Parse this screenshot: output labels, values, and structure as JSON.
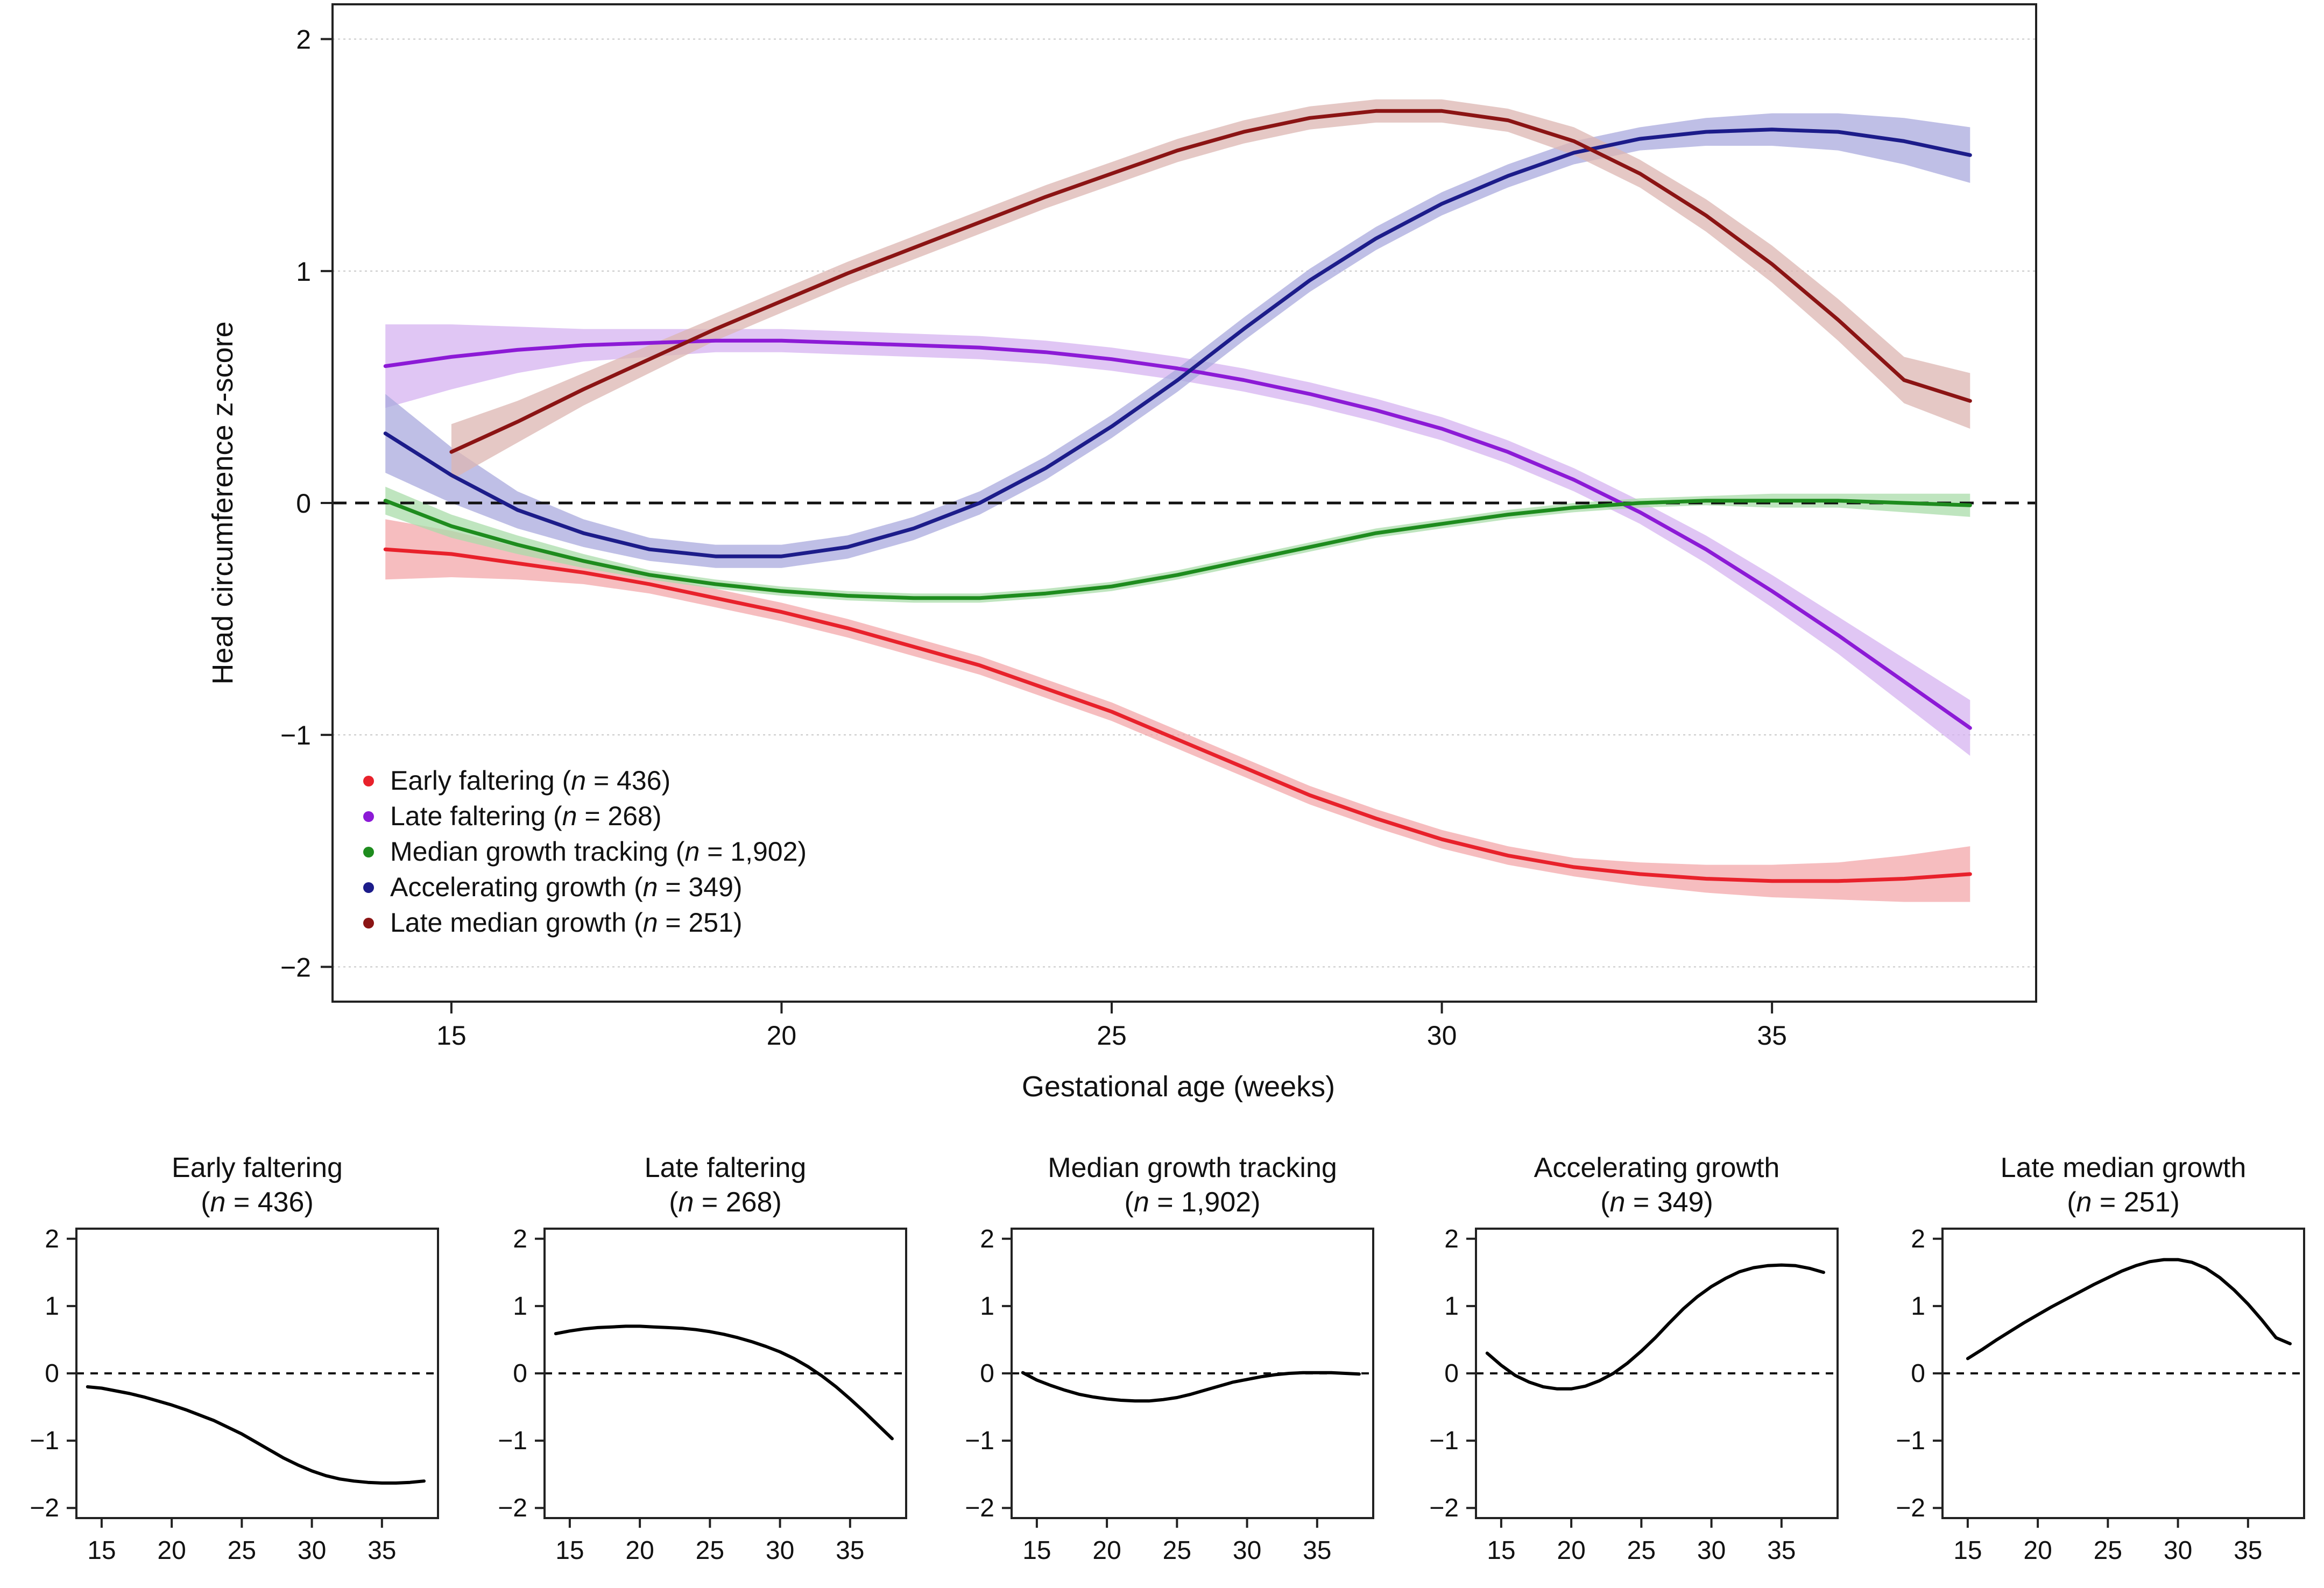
{
  "chart_data": {
    "type": "line",
    "title": "",
    "xlabel": "Gestational age (weeks)",
    "ylabel": "Head circumference z-score",
    "xlim": [
      13.2,
      39.0
    ],
    "ylim": [
      -2.15,
      2.15
    ],
    "xticks": [
      15,
      20,
      25,
      30,
      35
    ],
    "yticks": [
      2,
      1,
      0,
      -1,
      -2
    ],
    "reference_line": 0,
    "grid": "horizontal",
    "legend_position": "bottom-left",
    "series": [
      {
        "name": "Early faltering",
        "legend_label": "Early faltering (",
        "legend_n": "n",
        "legend_value": " = 436)",
        "color": "#e8212b",
        "band_color": "#f3a7aa",
        "x": [
          14,
          15,
          16,
          17,
          18,
          19,
          20,
          21,
          22,
          23,
          24,
          25,
          26,
          27,
          28,
          29,
          30,
          31,
          32,
          33,
          34,
          35,
          36,
          37,
          38
        ],
        "y": [
          -0.2,
          -0.22,
          -0.26,
          -0.3,
          -0.35,
          -0.41,
          -0.47,
          -0.54,
          -0.62,
          -0.7,
          -0.8,
          -0.9,
          -1.02,
          -1.14,
          -1.26,
          -1.36,
          -1.45,
          -1.52,
          -1.57,
          -1.6,
          -1.62,
          -1.63,
          -1.63,
          -1.62,
          -1.6
        ],
        "ci": [
          0.13,
          0.1,
          0.07,
          0.05,
          0.04,
          0.04,
          0.04,
          0.04,
          0.04,
          0.04,
          0.04,
          0.04,
          0.04,
          0.04,
          0.04,
          0.04,
          0.04,
          0.04,
          0.04,
          0.05,
          0.06,
          0.07,
          0.08,
          0.1,
          0.12
        ]
      },
      {
        "name": "Late faltering",
        "legend_label": "Late faltering (",
        "legend_n": "n",
        "legend_value": " = 268)",
        "color": "#8c1ad6",
        "band_color": "#d6b3f0",
        "x": [
          14,
          15,
          16,
          17,
          18,
          19,
          20,
          21,
          22,
          23,
          24,
          25,
          26,
          27,
          28,
          29,
          30,
          31,
          32,
          33,
          34,
          35,
          36,
          37,
          38
        ],
        "y": [
          0.59,
          0.63,
          0.66,
          0.68,
          0.69,
          0.7,
          0.7,
          0.69,
          0.68,
          0.67,
          0.65,
          0.62,
          0.58,
          0.53,
          0.47,
          0.4,
          0.32,
          0.22,
          0.1,
          -0.04,
          -0.2,
          -0.38,
          -0.57,
          -0.77,
          -0.97
        ],
        "ci": [
          0.18,
          0.14,
          0.1,
          0.07,
          0.06,
          0.05,
          0.05,
          0.05,
          0.05,
          0.05,
          0.05,
          0.05,
          0.05,
          0.05,
          0.05,
          0.05,
          0.05,
          0.05,
          0.05,
          0.05,
          0.06,
          0.07,
          0.08,
          0.1,
          0.12
        ]
      },
      {
        "name": "Median growth tracking",
        "legend_label": "Median growth tracking (",
        "legend_n": "n",
        "legend_value": " = 1,902)",
        "color": "#1e8c1e",
        "band_color": "#a9dca9",
        "x": [
          14,
          15,
          16,
          17,
          18,
          19,
          20,
          21,
          22,
          23,
          24,
          25,
          26,
          27,
          28,
          29,
          30,
          31,
          32,
          33,
          34,
          35,
          36,
          37,
          38
        ],
        "y": [
          0.01,
          -0.1,
          -0.18,
          -0.25,
          -0.31,
          -0.35,
          -0.38,
          -0.4,
          -0.41,
          -0.41,
          -0.39,
          -0.36,
          -0.31,
          -0.25,
          -0.19,
          -0.13,
          -0.09,
          -0.05,
          -0.02,
          0,
          0.01,
          0.01,
          0.01,
          0,
          -0.01
        ],
        "ci": [
          0.06,
          0.05,
          0.04,
          0.03,
          0.02,
          0.02,
          0.02,
          0.02,
          0.02,
          0.02,
          0.02,
          0.02,
          0.02,
          0.02,
          0.02,
          0.02,
          0.02,
          0.02,
          0.02,
          0.02,
          0.02,
          0.03,
          0.03,
          0.04,
          0.05
        ]
      },
      {
        "name": "Accelerating growth",
        "legend_label": "Accelerating growth (",
        "legend_n": "n",
        "legend_value": " = 349)",
        "color": "#1c1c8a",
        "band_color": "#a9a9de",
        "x": [
          14,
          15,
          16,
          17,
          18,
          19,
          20,
          21,
          22,
          23,
          24,
          25,
          26,
          27,
          28,
          29,
          30,
          31,
          32,
          33,
          34,
          35,
          36,
          37,
          38
        ],
        "y": [
          0.3,
          0.12,
          -0.03,
          -0.13,
          -0.2,
          -0.23,
          -0.23,
          -0.19,
          -0.11,
          0,
          0.15,
          0.33,
          0.53,
          0.75,
          0.96,
          1.14,
          1.29,
          1.41,
          1.51,
          1.57,
          1.6,
          1.61,
          1.6,
          1.56,
          1.5
        ],
        "ci": [
          0.17,
          0.12,
          0.08,
          0.06,
          0.05,
          0.05,
          0.05,
          0.05,
          0.05,
          0.05,
          0.05,
          0.05,
          0.05,
          0.05,
          0.05,
          0.05,
          0.05,
          0.05,
          0.05,
          0.05,
          0.06,
          0.07,
          0.08,
          0.1,
          0.12
        ]
      },
      {
        "name": "Late median growth",
        "legend_label": "Late median growth (",
        "legend_n": "n",
        "legend_value": " = 251)",
        "color": "#8b1414",
        "band_color": "#dcb6b2",
        "x": [
          15,
          16,
          17,
          18,
          19,
          20,
          21,
          22,
          23,
          24,
          25,
          26,
          27,
          28,
          29,
          30,
          31,
          32,
          33,
          34,
          35,
          36,
          37,
          38
        ],
        "y": [
          0.22,
          0.35,
          0.49,
          0.62,
          0.75,
          0.87,
          0.99,
          1.1,
          1.21,
          1.32,
          1.42,
          1.52,
          1.6,
          1.66,
          1.69,
          1.69,
          1.65,
          1.56,
          1.42,
          1.24,
          1.03,
          0.79,
          0.53,
          0.44
        ],
        "ci": [
          0.12,
          0.09,
          0.07,
          0.06,
          0.05,
          0.05,
          0.05,
          0.05,
          0.05,
          0.05,
          0.05,
          0.05,
          0.05,
          0.05,
          0.05,
          0.05,
          0.05,
          0.06,
          0.06,
          0.07,
          0.08,
          0.09,
          0.1,
          0.12
        ]
      }
    ],
    "small_multiples": {
      "xlim": [
        13.2,
        39.0
      ],
      "ylim": [
        -2.15,
        2.15
      ],
      "xticks": [
        15,
        20,
        25,
        30,
        35
      ],
      "yticks": [
        2,
        1,
        0,
        -1,
        -2
      ],
      "panels": [
        {
          "title": "Early faltering",
          "n_prefix": "(",
          "n_italic": "n",
          "n_value": " = 436)"
        },
        {
          "title": "Late faltering",
          "n_prefix": "(",
          "n_italic": "n",
          "n_value": " = 268)"
        },
        {
          "title": "Median growth tracking",
          "n_prefix": "(",
          "n_italic": "n",
          "n_value": " = 1,902)"
        },
        {
          "title": "Accelerating growth",
          "n_prefix": "(",
          "n_italic": "n",
          "n_value": " = 349)"
        },
        {
          "title": "Late median growth",
          "n_prefix": "(",
          "n_italic": "n",
          "n_value": " = 251)"
        }
      ]
    }
  }
}
